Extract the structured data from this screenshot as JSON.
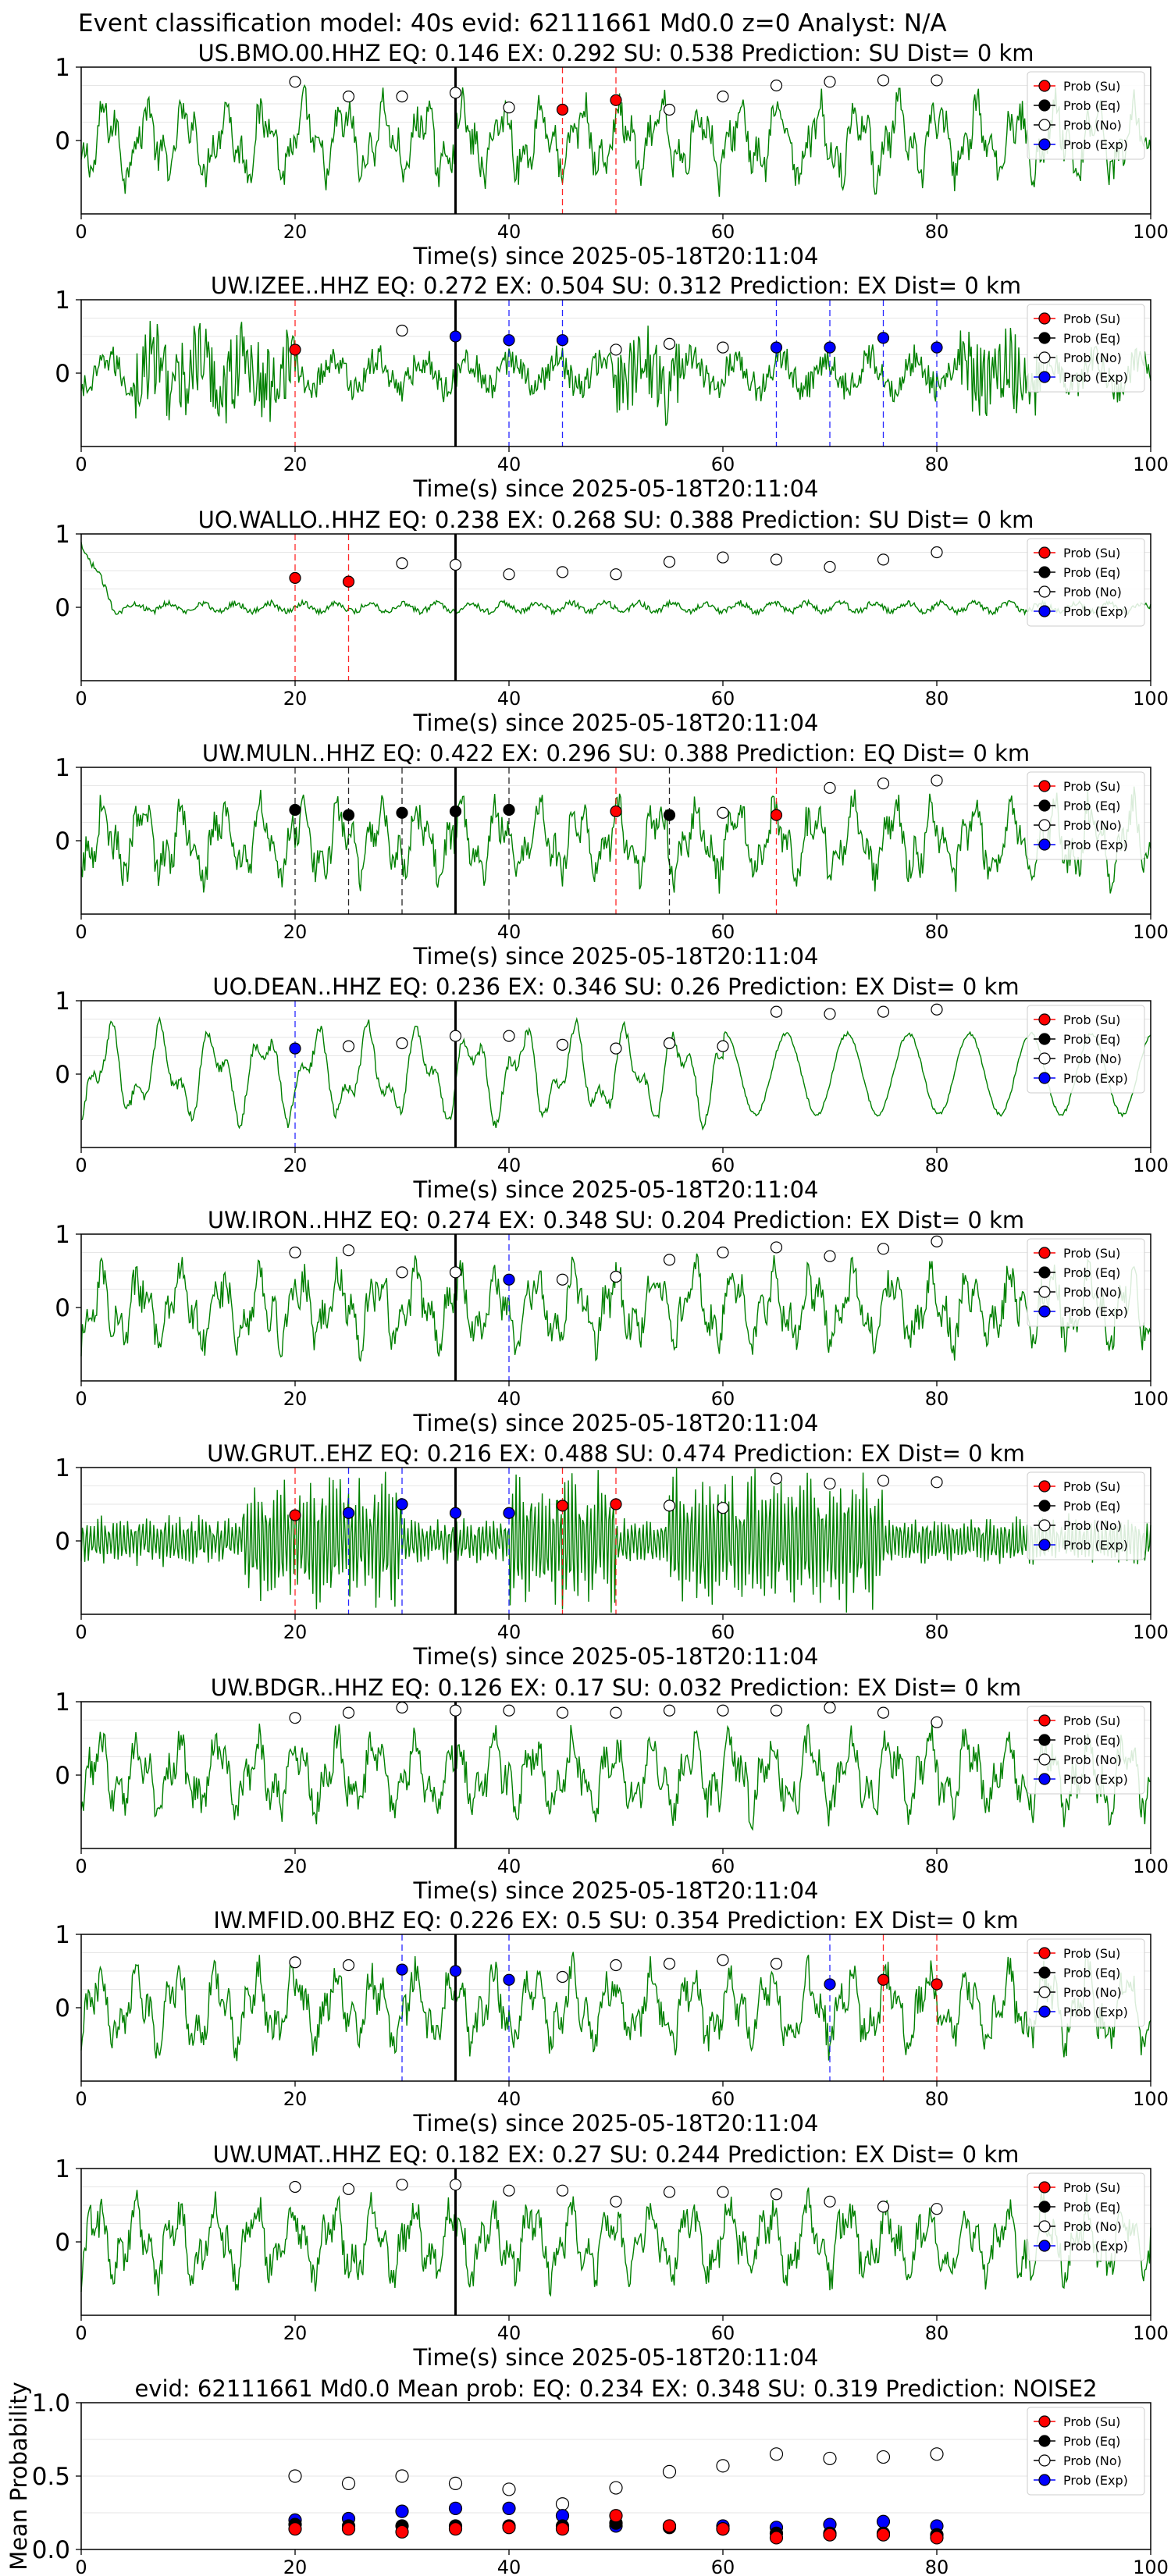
{
  "figure": {
    "suptitle": "Event classification model: 40s evid: 62111661 Md0.0 z=0 Analyst: N/A"
  },
  "legend": {
    "entries": [
      {
        "label": "Prob (Su)",
        "color": "#ff0000"
      },
      {
        "label": "Prob (Eq)",
        "color": "#000000"
      },
      {
        "label": "Prob (No)",
        "color": "#ffffff"
      },
      {
        "label": "Prob (Exp)",
        "color": "#0000ff"
      }
    ]
  },
  "colors": {
    "waveform": "#008000",
    "su": "#ff0000",
    "eq": "#000000",
    "no": "#ffffff",
    "exp": "#0000ff",
    "origin_line": "#000000",
    "grid": "#e6e6e6"
  },
  "chart_data": [
    {
      "type": "line",
      "title": "US.BMO.00.HHZ   EQ: 0.146  EX: 0.292  SU: 0.538   Prediction: SU    Dist= 0 km",
      "xlabel": "Time(s) since 2025-05-18T20:11:04",
      "xlim": [
        0,
        100
      ],
      "ylim": [
        -1,
        1
      ],
      "xticks": [
        "0",
        "20",
        "40",
        "60",
        "80",
        "100"
      ],
      "yticks": [
        "1",
        "0"
      ],
      "origin_time": 35,
      "style": "noisy",
      "windows": [
        {
          "t": 20,
          "cls": "no",
          "p": 0.8
        },
        {
          "t": 25,
          "cls": "no",
          "p": 0.6
        },
        {
          "t": 30,
          "cls": "no",
          "p": 0.6
        },
        {
          "t": 35,
          "cls": "no",
          "p": 0.65
        },
        {
          "t": 40,
          "cls": "no",
          "p": 0.45
        },
        {
          "t": 45,
          "cls": "su",
          "p": 0.42
        },
        {
          "t": 50,
          "cls": "su",
          "p": 0.55
        },
        {
          "t": 55,
          "cls": "no",
          "p": 0.42
        },
        {
          "t": 60,
          "cls": "no",
          "p": 0.6
        },
        {
          "t": 65,
          "cls": "no",
          "p": 0.75
        },
        {
          "t": 70,
          "cls": "no",
          "p": 0.8
        },
        {
          "t": 75,
          "cls": "no",
          "p": 0.82
        },
        {
          "t": 80,
          "cls": "no",
          "p": 0.82
        }
      ]
    },
    {
      "type": "line",
      "title": "UW.IZEE..HHZ   EQ: 0.272  EX: 0.504  SU: 0.312   Prediction: EX    Dist= 0 km",
      "xlabel": "Time(s) since 2025-05-18T20:11:04",
      "xlim": [
        0,
        100
      ],
      "ylim": [
        -1,
        1
      ],
      "xticks": [
        "0",
        "20",
        "40",
        "60",
        "80",
        "100"
      ],
      "yticks": [
        "1",
        "0"
      ],
      "origin_time": 35,
      "style": "bursty",
      "windows": [
        {
          "t": 20,
          "cls": "su",
          "p": 0.32
        },
        {
          "t": 30,
          "cls": "no",
          "p": 0.58
        },
        {
          "t": 35,
          "cls": "exp",
          "p": 0.5
        },
        {
          "t": 40,
          "cls": "exp",
          "p": 0.45
        },
        {
          "t": 45,
          "cls": "exp",
          "p": 0.45
        },
        {
          "t": 50,
          "cls": "no",
          "p": 0.32
        },
        {
          "t": 55,
          "cls": "no",
          "p": 0.4
        },
        {
          "t": 60,
          "cls": "no",
          "p": 0.35
        },
        {
          "t": 65,
          "cls": "exp",
          "p": 0.35
        },
        {
          "t": 70,
          "cls": "exp",
          "p": 0.35
        },
        {
          "t": 75,
          "cls": "exp",
          "p": 0.48
        },
        {
          "t": 80,
          "cls": "exp",
          "p": 0.35
        }
      ]
    },
    {
      "type": "line",
      "title": "UO.WALLO..HHZ   EQ: 0.238  EX: 0.268  SU: 0.388   Prediction: SU    Dist= 0 km",
      "xlabel": "Time(s) since 2025-05-18T20:11:04",
      "xlim": [
        0,
        100
      ],
      "ylim": [
        -1,
        1
      ],
      "xticks": [
        "0",
        "20",
        "40",
        "60",
        "80",
        "100"
      ],
      "yticks": [
        "1",
        "0"
      ],
      "origin_time": 35,
      "style": "quiet",
      "windows": [
        {
          "t": 20,
          "cls": "su",
          "p": 0.4
        },
        {
          "t": 25,
          "cls": "su",
          "p": 0.35
        },
        {
          "t": 30,
          "cls": "no",
          "p": 0.6
        },
        {
          "t": 35,
          "cls": "no",
          "p": 0.58
        },
        {
          "t": 40,
          "cls": "no",
          "p": 0.45
        },
        {
          "t": 45,
          "cls": "no",
          "p": 0.48
        },
        {
          "t": 50,
          "cls": "no",
          "p": 0.45
        },
        {
          "t": 55,
          "cls": "no",
          "p": 0.62
        },
        {
          "t": 60,
          "cls": "no",
          "p": 0.68
        },
        {
          "t": 65,
          "cls": "no",
          "p": 0.65
        },
        {
          "t": 70,
          "cls": "no",
          "p": 0.55
        },
        {
          "t": 75,
          "cls": "no",
          "p": 0.65
        },
        {
          "t": 80,
          "cls": "no",
          "p": 0.75
        }
      ]
    },
    {
      "type": "line",
      "title": "UW.MULN..HHZ   EQ: 0.422  EX: 0.296  SU: 0.388   Prediction: EQ    Dist= 0 km",
      "xlabel": "Time(s) since 2025-05-18T20:11:04",
      "xlim": [
        0,
        100
      ],
      "ylim": [
        -1,
        1
      ],
      "xticks": [
        "0",
        "20",
        "40",
        "60",
        "80",
        "100"
      ],
      "yticks": [
        "1",
        "0"
      ],
      "origin_time": 35,
      "style": "noisy",
      "windows": [
        {
          "t": 20,
          "cls": "eq",
          "p": 0.42
        },
        {
          "t": 25,
          "cls": "eq",
          "p": 0.35
        },
        {
          "t": 30,
          "cls": "eq",
          "p": 0.38
        },
        {
          "t": 35,
          "cls": "eq",
          "p": 0.4
        },
        {
          "t": 40,
          "cls": "eq",
          "p": 0.42
        },
        {
          "t": 50,
          "cls": "su",
          "p": 0.4
        },
        {
          "t": 55,
          "cls": "eq",
          "p": 0.35
        },
        {
          "t": 60,
          "cls": "no",
          "p": 0.38
        },
        {
          "t": 65,
          "cls": "su",
          "p": 0.35
        },
        {
          "t": 70,
          "cls": "no",
          "p": 0.72
        },
        {
          "t": 75,
          "cls": "no",
          "p": 0.78
        },
        {
          "t": 80,
          "cls": "no",
          "p": 0.82
        }
      ]
    },
    {
      "type": "line",
      "title": "UO.DEAN..HHZ   EQ: 0.236  EX: 0.346  SU: 0.26   Prediction: EX    Dist= 0 km",
      "xlabel": "Time(s) since 2025-05-18T20:11:04",
      "xlim": [
        0,
        100
      ],
      "ylim": [
        -1,
        1
      ],
      "xticks": [
        "0",
        "20",
        "40",
        "60",
        "80",
        "100"
      ],
      "yticks": [
        "1",
        "0"
      ],
      "origin_time": 35,
      "style": "smooth",
      "windows": [
        {
          "t": 20,
          "cls": "exp",
          "p": 0.35
        },
        {
          "t": 25,
          "cls": "no",
          "p": 0.38
        },
        {
          "t": 30,
          "cls": "no",
          "p": 0.42
        },
        {
          "t": 35,
          "cls": "no",
          "p": 0.52
        },
        {
          "t": 40,
          "cls": "no",
          "p": 0.52
        },
        {
          "t": 45,
          "cls": "no",
          "p": 0.4
        },
        {
          "t": 50,
          "cls": "no",
          "p": 0.35
        },
        {
          "t": 55,
          "cls": "no",
          "p": 0.42
        },
        {
          "t": 60,
          "cls": "no",
          "p": 0.38
        },
        {
          "t": 65,
          "cls": "no",
          "p": 0.85
        },
        {
          "t": 70,
          "cls": "no",
          "p": 0.82
        },
        {
          "t": 75,
          "cls": "no",
          "p": 0.85
        },
        {
          "t": 80,
          "cls": "no",
          "p": 0.88
        }
      ]
    },
    {
      "type": "line",
      "title": "UW.IRON..HHZ   EQ: 0.274  EX: 0.348  SU: 0.204   Prediction: EX    Dist= 0 km",
      "xlabel": "Time(s) since 2025-05-18T20:11:04",
      "xlim": [
        0,
        100
      ],
      "ylim": [
        -1,
        1
      ],
      "xticks": [
        "0",
        "20",
        "40",
        "60",
        "80",
        "100"
      ],
      "yticks": [
        "1",
        "0"
      ],
      "origin_time": 35,
      "style": "noisy",
      "windows": [
        {
          "t": 20,
          "cls": "no",
          "p": 0.75
        },
        {
          "t": 25,
          "cls": "no",
          "p": 0.78
        },
        {
          "t": 30,
          "cls": "no",
          "p": 0.48
        },
        {
          "t": 35,
          "cls": "no",
          "p": 0.48
        },
        {
          "t": 40,
          "cls": "exp",
          "p": 0.38
        },
        {
          "t": 45,
          "cls": "no",
          "p": 0.38
        },
        {
          "t": 50,
          "cls": "no",
          "p": 0.42
        },
        {
          "t": 55,
          "cls": "no",
          "p": 0.65
        },
        {
          "t": 60,
          "cls": "no",
          "p": 0.75
        },
        {
          "t": 65,
          "cls": "no",
          "p": 0.82
        },
        {
          "t": 70,
          "cls": "no",
          "p": 0.7
        },
        {
          "t": 75,
          "cls": "no",
          "p": 0.8
        },
        {
          "t": 80,
          "cls": "no",
          "p": 0.9
        }
      ]
    },
    {
      "type": "line",
      "title": "UW.GRUT..EHZ   EQ: 0.216  EX: 0.488  SU: 0.474   Prediction: EX    Dist= 0 km",
      "xlabel": "Time(s) since 2025-05-18T20:11:04",
      "xlim": [
        0,
        100
      ],
      "ylim": [
        -1,
        1
      ],
      "xticks": [
        "0",
        "20",
        "40",
        "60",
        "80",
        "100"
      ],
      "yticks": [
        "1",
        "0"
      ],
      "origin_time": 35,
      "style": "dense",
      "windows": [
        {
          "t": 20,
          "cls": "su",
          "p": 0.35
        },
        {
          "t": 25,
          "cls": "exp",
          "p": 0.38
        },
        {
          "t": 30,
          "cls": "exp",
          "p": 0.5
        },
        {
          "t": 35,
          "cls": "exp",
          "p": 0.38
        },
        {
          "t": 40,
          "cls": "exp",
          "p": 0.38
        },
        {
          "t": 45,
          "cls": "su",
          "p": 0.48
        },
        {
          "t": 50,
          "cls": "su",
          "p": 0.5
        },
        {
          "t": 55,
          "cls": "no",
          "p": 0.48
        },
        {
          "t": 60,
          "cls": "no",
          "p": 0.45
        },
        {
          "t": 65,
          "cls": "no",
          "p": 0.85
        },
        {
          "t": 70,
          "cls": "no",
          "p": 0.78
        },
        {
          "t": 75,
          "cls": "no",
          "p": 0.82
        },
        {
          "t": 80,
          "cls": "no",
          "p": 0.8
        }
      ]
    },
    {
      "type": "line",
      "title": "UW.BDGR..HHZ   EQ: 0.126  EX: 0.17  SU: 0.032   Prediction: EX    Dist= 0 km",
      "xlabel": "Time(s) since 2025-05-18T20:11:04",
      "xlim": [
        0,
        100
      ],
      "ylim": [
        -1,
        1
      ],
      "xticks": [
        "0",
        "20",
        "40",
        "60",
        "80",
        "100"
      ],
      "yticks": [
        "1",
        "0"
      ],
      "origin_time": 35,
      "style": "noisy",
      "windows": [
        {
          "t": 20,
          "cls": "no",
          "p": 0.78
        },
        {
          "t": 25,
          "cls": "no",
          "p": 0.85
        },
        {
          "t": 30,
          "cls": "no",
          "p": 0.92
        },
        {
          "t": 35,
          "cls": "no",
          "p": 0.88
        },
        {
          "t": 40,
          "cls": "no",
          "p": 0.88
        },
        {
          "t": 45,
          "cls": "no",
          "p": 0.85
        },
        {
          "t": 50,
          "cls": "no",
          "p": 0.85
        },
        {
          "t": 55,
          "cls": "no",
          "p": 0.88
        },
        {
          "t": 60,
          "cls": "no",
          "p": 0.88
        },
        {
          "t": 65,
          "cls": "no",
          "p": 0.88
        },
        {
          "t": 70,
          "cls": "no",
          "p": 0.92
        },
        {
          "t": 75,
          "cls": "no",
          "p": 0.85
        },
        {
          "t": 80,
          "cls": "no",
          "p": 0.72
        }
      ]
    },
    {
      "type": "line",
      "title": "IW.MFID.00.BHZ   EQ: 0.226  EX: 0.5  SU: 0.354   Prediction: EX    Dist= 0 km",
      "xlabel": "Time(s) since 2025-05-18T20:11:04",
      "xlim": [
        0,
        100
      ],
      "ylim": [
        -1,
        1
      ],
      "xticks": [
        "0",
        "20",
        "40",
        "60",
        "80",
        "100"
      ],
      "yticks": [
        "1",
        "0"
      ],
      "origin_time": 35,
      "style": "noisy",
      "windows": [
        {
          "t": 20,
          "cls": "no",
          "p": 0.62
        },
        {
          "t": 25,
          "cls": "no",
          "p": 0.58
        },
        {
          "t": 30,
          "cls": "exp",
          "p": 0.52
        },
        {
          "t": 35,
          "cls": "exp",
          "p": 0.5
        },
        {
          "t": 40,
          "cls": "exp",
          "p": 0.38
        },
        {
          "t": 45,
          "cls": "no",
          "p": 0.42
        },
        {
          "t": 50,
          "cls": "no",
          "p": 0.58
        },
        {
          "t": 55,
          "cls": "no",
          "p": 0.6
        },
        {
          "t": 60,
          "cls": "no",
          "p": 0.65
        },
        {
          "t": 65,
          "cls": "no",
          "p": 0.6
        },
        {
          "t": 70,
          "cls": "exp",
          "p": 0.32
        },
        {
          "t": 75,
          "cls": "su",
          "p": 0.38
        },
        {
          "t": 80,
          "cls": "su",
          "p": 0.32
        }
      ]
    },
    {
      "type": "line",
      "title": "UW.UMAT..HHZ   EQ: 0.182  EX: 0.27  SU: 0.244   Prediction: EX    Dist= 0 km",
      "xlabel": "Time(s) since 2025-05-18T20:11:04",
      "xlim": [
        0,
        100
      ],
      "ylim": [
        -1,
        1
      ],
      "xticks": [
        "0",
        "20",
        "40",
        "60",
        "80",
        "100"
      ],
      "yticks": [
        "1",
        "0"
      ],
      "origin_time": 35,
      "style": "noisy",
      "windows": [
        {
          "t": 20,
          "cls": "no",
          "p": 0.75
        },
        {
          "t": 25,
          "cls": "no",
          "p": 0.72
        },
        {
          "t": 30,
          "cls": "no",
          "p": 0.78
        },
        {
          "t": 35,
          "cls": "no",
          "p": 0.78
        },
        {
          "t": 40,
          "cls": "no",
          "p": 0.7
        },
        {
          "t": 45,
          "cls": "no",
          "p": 0.7
        },
        {
          "t": 50,
          "cls": "no",
          "p": 0.55
        },
        {
          "t": 55,
          "cls": "no",
          "p": 0.68
        },
        {
          "t": 60,
          "cls": "no",
          "p": 0.68
        },
        {
          "t": 65,
          "cls": "no",
          "p": 0.65
        },
        {
          "t": 70,
          "cls": "no",
          "p": 0.55
        },
        {
          "t": 75,
          "cls": "no",
          "p": 0.48
        },
        {
          "t": 80,
          "cls": "no",
          "p": 0.45
        }
      ]
    },
    {
      "type": "scatter",
      "title": "evid: 62111661  Md0.0   Mean prob:   EQ: 0.234  EX: 0.348  SU: 0.319   Prediction: NOISE2",
      "ylabel": "Mean Probability",
      "xlim": [
        0,
        100
      ],
      "ylim": [
        0,
        1
      ],
      "xticks": [
        "0",
        "20",
        "40",
        "60",
        "80",
        "100"
      ],
      "yticks": [
        "1.0",
        "0.5",
        "0.0"
      ],
      "x": [
        20,
        25,
        30,
        35,
        40,
        45,
        50,
        55,
        60,
        65,
        70,
        75,
        80
      ],
      "series": [
        {
          "name": "Prob (No)",
          "cls": "no",
          "values": [
            0.5,
            0.45,
            0.5,
            0.45,
            0.41,
            0.31,
            0.42,
            0.53,
            0.57,
            0.65,
            0.62,
            0.63,
            0.65
          ]
        },
        {
          "name": "Prob (Exp)",
          "cls": "exp",
          "values": [
            0.2,
            0.21,
            0.26,
            0.28,
            0.28,
            0.23,
            0.16,
            0.16,
            0.16,
            0.15,
            0.17,
            0.19,
            0.16
          ]
        },
        {
          "name": "Prob (Eq)",
          "cls": "eq",
          "values": [
            0.17,
            0.16,
            0.16,
            0.16,
            0.16,
            0.16,
            0.18,
            0.15,
            0.14,
            0.11,
            0.11,
            0.11,
            0.1
          ]
        },
        {
          "name": "Prob (Su)",
          "cls": "su",
          "values": [
            0.14,
            0.14,
            0.12,
            0.14,
            0.15,
            0.14,
            0.23,
            0.16,
            0.14,
            0.08,
            0.1,
            0.1,
            0.08
          ]
        }
      ]
    }
  ]
}
